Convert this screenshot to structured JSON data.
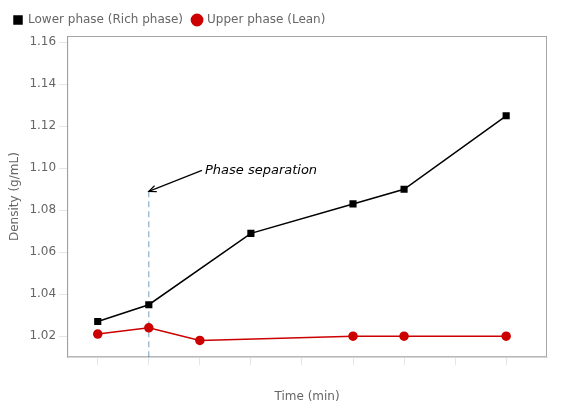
{
  "chart_data": {
    "type": "line",
    "xlabel": "Time (min)",
    "ylabel": "Density (g/mL)",
    "series": [
      {
        "name": "Lower phase (Rich phase)",
        "color": "#000000",
        "marker": "square",
        "x": [
          1,
          2,
          4,
          6,
          7,
          9
        ],
        "values": [
          1.027,
          1.035,
          1.069,
          1.083,
          1.09,
          1.125
        ]
      },
      {
        "name": "Upper phase (Lean)",
        "color": "#cc0000",
        "marker": "circle",
        "x": [
          1,
          2,
          3,
          6,
          7,
          9
        ],
        "values": [
          1.021,
          1.024,
          1.018,
          1.02,
          1.02,
          1.02
        ]
      }
    ],
    "xlim": [
      0.4,
      9.8
    ],
    "xticks": [
      1,
      2,
      3,
      4,
      5,
      6,
      7,
      8,
      9
    ],
    "ylim": [
      1.01,
      1.163
    ],
    "yticks": [
      1.02,
      1.04,
      1.06,
      1.08,
      {
        "value": 1.1,
        "label": "1.10"
      },
      1.12,
      1.14,
      1.16
    ],
    "tick_labels": "y",
    "grid": false,
    "legend": "upper left",
    "vlines": [
      {
        "x": 2,
        "y_top": 1.089,
        "color": "#8aaec8",
        "line_style": "dashed"
      }
    ],
    "annotations": [
      {
        "text": "Phase separation",
        "x": 3.1,
        "y": 1.099,
        "arrow_x": 2,
        "arrow_y": 1.089
      }
    ]
  }
}
